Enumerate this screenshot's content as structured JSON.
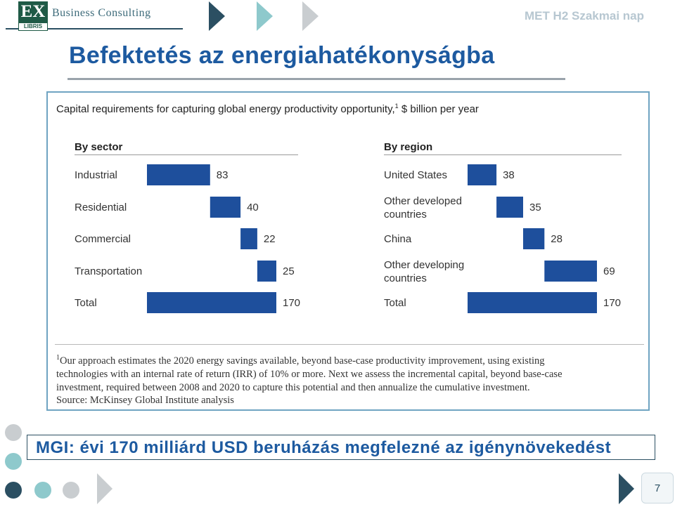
{
  "header": {
    "logo_mark": "EX",
    "logo_sub": "LIBRIS",
    "logo_text": "Business Consulting",
    "event": "MET H2 Szakmai nap"
  },
  "slide": {
    "title": "Befektetés az energiahatékonyságba",
    "conclusion": "MGI: évi 170 milliárd USD beruházás megfelezné az igénynövekedést",
    "page_number": "7"
  },
  "exhibit": {
    "footnote_marker": "1",
    "footnote_lines": [
      "Our approach estimates the 2020 energy savings available, beyond base-case productivity improvement, using existing",
      "technologies with an internal rate of return (IRR) of 10% or more. Next we assess the incremental capital, beyond base-case",
      "investment, required between 2008 and 2020 to capture this potential and then annualize the cumulative investment."
    ],
    "source": "Source: McKinsey Global Institute analysis"
  },
  "colors": {
    "bar": "#1e4f9c",
    "title_blue": "#1d5aa0",
    "frame": "#6fa4c2",
    "dark_teal": "#2b4f62",
    "light_teal": "#8ec9cc",
    "light_gray": "#c9cdd0"
  },
  "chart_data": [
    {
      "type": "waterfall",
      "title": "Capital requirements for capturing global energy productivity opportunity,",
      "title_sup": "1",
      "title_units": " $ billion per year",
      "panel_title": "By sector",
      "categories": [
        [
          "Industrial"
        ],
        [
          "Residential"
        ],
        [
          "Commercial"
        ],
        [
          "Transportation"
        ],
        [
          "Total"
        ]
      ],
      "values": [
        83,
        40,
        22,
        25,
        170
      ],
      "total_index": 4
    },
    {
      "type": "waterfall",
      "panel_title": "By region",
      "categories": [
        [
          "United States"
        ],
        [
          "Other developed",
          "countries"
        ],
        [
          "China"
        ],
        [
          "Other developing",
          "countries"
        ],
        [
          "Total"
        ]
      ],
      "values": [
        38,
        35,
        28,
        69,
        170
      ],
      "total_index": 4
    }
  ]
}
